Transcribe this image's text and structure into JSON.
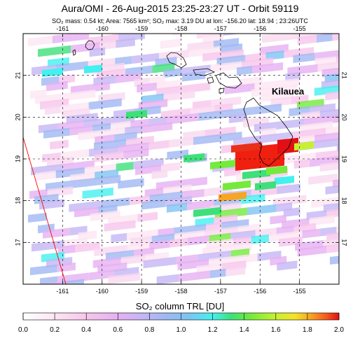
{
  "title": "Aura/OMI - 26-Aug-2015 23:25-23:27 UT - Orbit 59119",
  "subtitle": "SO₂ mass: 0.54 kt; Area: 7565 km²; SO₂ max: 3.19 DU at lon: -156.20 lat: 18.94 ; 23:26UTC",
  "colorbar_title": "SO₂ column TRL [DU]",
  "place_label": "Kilauea",
  "map": {
    "lon_range": [
      -162.0,
      -154.0
    ],
    "lat_range": [
      16.0,
      22.0
    ],
    "lon_ticks": [
      -161,
      -160,
      -159,
      -158,
      -157,
      -156,
      -155
    ],
    "lat_ticks": [
      17,
      18,
      19,
      20,
      21
    ],
    "grid": "dashed",
    "volcano": {
      "name": "Kilauea",
      "lon": -155.29,
      "lat": 19.41
    }
  },
  "colorbar": {
    "ticks": [
      "0.0",
      "0.2",
      "0.4",
      "0.6",
      "0.8",
      "1.0",
      "1.2",
      "1.4",
      "1.6",
      "1.8",
      "2.0"
    ],
    "colors": [
      "#ffffff",
      "#fde6f3",
      "#f7c6ec",
      "#e6b0f2",
      "#c4b6f4",
      "#a0b8f2",
      "#7fc3f2",
      "#44f0f0",
      "#3ee07a",
      "#74ea3c",
      "#c8f032",
      "#f4e22a",
      "#f6a524",
      "#f55a1e",
      "#e21014"
    ]
  }
}
